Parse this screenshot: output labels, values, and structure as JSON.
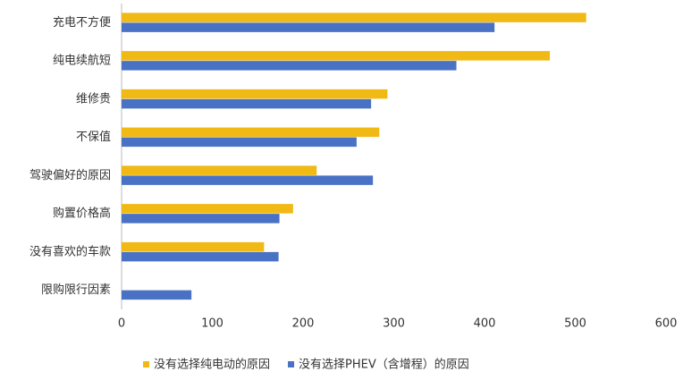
{
  "chart_data": {
    "type": "barh",
    "categories": [
      "充电不方便",
      "纯电续航短",
      "维修贵",
      "不保值",
      "驾驶偏好的原因",
      "购置价格高",
      "没有喜欢的车款",
      "限购限行因素"
    ],
    "series": [
      {
        "name": "没有选择纯电动的原因",
        "color": "#f0b914",
        "values": [
          512,
          472,
          293,
          284,
          215,
          189,
          157,
          0
        ]
      },
      {
        "name": "没有选择PHEV（含增程）的原因",
        "color": "#4a72c4",
        "values": [
          411,
          369,
          275,
          259,
          277,
          174,
          173,
          77
        ]
      }
    ],
    "xlim": [
      0,
      600
    ],
    "xticks": [
      0,
      100,
      200,
      300,
      400,
      500,
      600
    ],
    "legend": "bottom"
  }
}
